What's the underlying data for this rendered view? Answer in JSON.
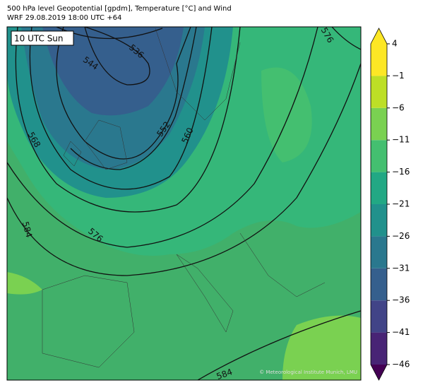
{
  "header": {
    "title": "500 hPa level Geopotential [gpdm], Temperature [°C] and Wind",
    "subtitle": "WRF 29.08.2019 18:00 UTC +64"
  },
  "map": {
    "time_label": "10 UTC Sun",
    "credit": "© Meteorological Institute Munich, LMU",
    "contour_labels": [
      "536",
      "544",
      "552",
      "560",
      "568",
      "576",
      "576",
      "584",
      "584"
    ]
  },
  "colorbar": {
    "ticks": [
      4,
      {
        "value": -1,
        "label": "−1"
      },
      {
        "value": -6,
        "label": "−6"
      },
      {
        "value": -11,
        "label": "−11"
      },
      {
        "value": -16,
        "label": "−16"
      },
      {
        "value": -21,
        "label": "−21"
      },
      {
        "value": -26,
        "label": "−26"
      },
      {
        "value": -31,
        "label": "−31"
      },
      {
        "value": -36,
        "label": "−36"
      },
      {
        "value": -41,
        "label": "−41"
      },
      {
        "value": -46,
        "label": "−46"
      }
    ],
    "lim": [
      -46,
      4
    ],
    "colors": [
      "#440154",
      "#482475",
      "#414487",
      "#355f8d",
      "#2a788e",
      "#21918c",
      "#22a884",
      "#44bf70",
      "#7ad151",
      "#bddf26",
      "#fde725"
    ]
  }
}
